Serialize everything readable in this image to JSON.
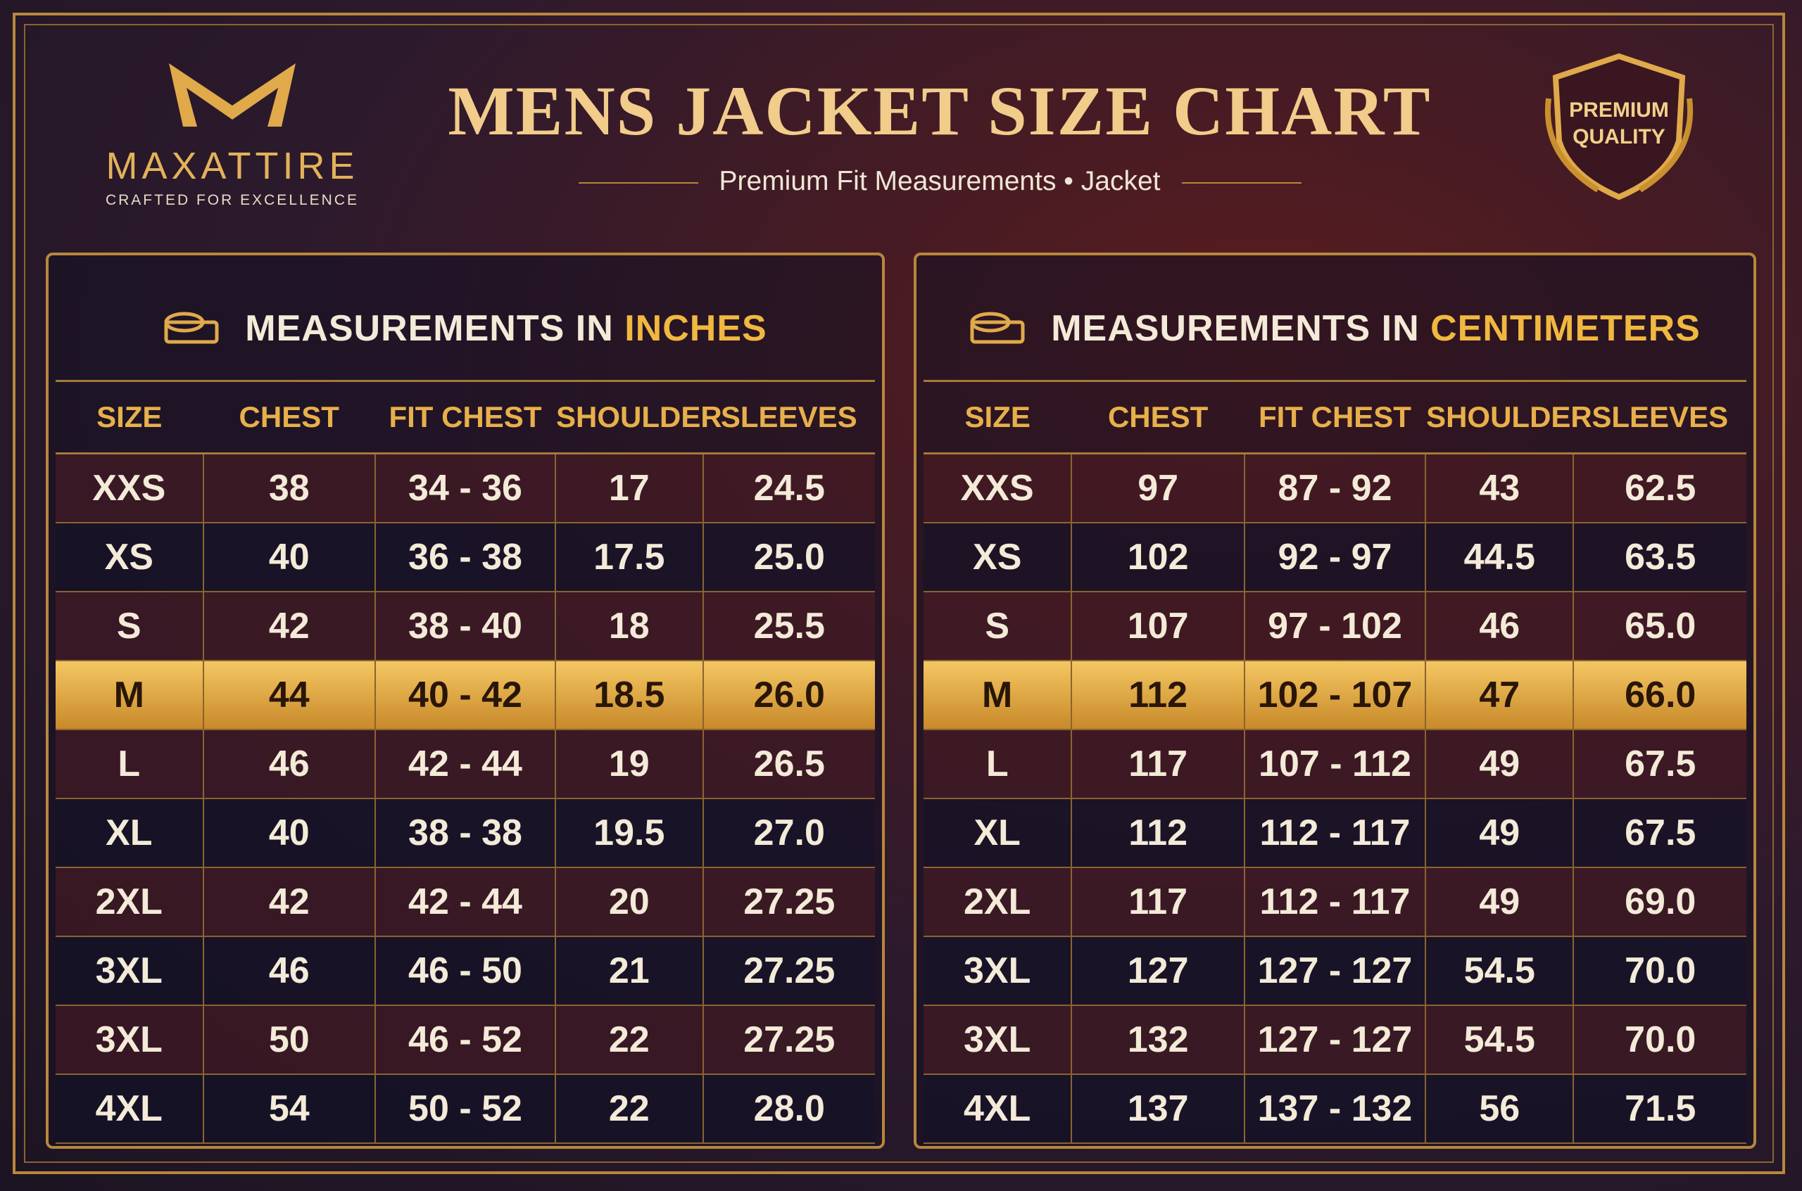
{
  "brand": {
    "name": "MAXATTIRE",
    "tagline": "CRAFTED FOR EXCELLENCE"
  },
  "header": {
    "title": "MENS JACKET SIZE CHART",
    "subtitle": "Premium Fit Measurements • Jacket"
  },
  "badge": {
    "line1": "PREMIUM",
    "line2": "QUALITY"
  },
  "tables": [
    {
      "heading_prefix": "MEASUREMENTS IN",
      "heading_unit": "INCHES",
      "columns": [
        "SIZE",
        "CHEST",
        "FIT CHEST",
        "SHOULDER",
        "SLEEVES"
      ],
      "rows": [
        [
          "XXS",
          "38",
          "34 - 36",
          "17",
          "24.5"
        ],
        [
          "XS",
          "40",
          "36 - 38",
          "17.5",
          "25.0"
        ],
        [
          "S",
          "42",
          "38 - 40",
          "18",
          "25.5"
        ],
        [
          "M",
          "44",
          "40 - 42",
          "18.5",
          "26.0"
        ],
        [
          "L",
          "46",
          "42 - 44",
          "19",
          "26.5"
        ],
        [
          "XL",
          "40",
          "38 - 38",
          "19.5",
          "27.0"
        ],
        [
          "2XL",
          "42",
          "42 - 44",
          "20",
          "27.25"
        ],
        [
          "3XL",
          "46",
          "46 - 50",
          "21",
          "27.25"
        ],
        [
          "3XL",
          "50",
          "46 - 52",
          "22",
          "27.25"
        ],
        [
          "4XL",
          "54",
          "50 - 52",
          "22",
          "28.0"
        ]
      ]
    },
    {
      "heading_prefix": "MEASUREMENTS IN",
      "heading_unit": "CENTIMETERS",
      "columns": [
        "SIZE",
        "CHEST",
        "FIT CHEST",
        "SHOULDER",
        "SLEEVES"
      ],
      "rows": [
        [
          "XXS",
          "97",
          "87 - 92",
          "43",
          "62.5"
        ],
        [
          "XS",
          "102",
          "92 - 97",
          "44.5",
          "63.5"
        ],
        [
          "S",
          "107",
          "97 - 102",
          "46",
          "65.0"
        ],
        [
          "M",
          "112",
          "102 - 107",
          "47",
          "66.0"
        ],
        [
          "L",
          "117",
          "107 - 112",
          "49",
          "67.5"
        ],
        [
          "XL",
          "112",
          "112 - 117",
          "49",
          "67.5"
        ],
        [
          "2XL",
          "117",
          "112 - 117",
          "49",
          "69.0"
        ],
        [
          "3XL",
          "127",
          "127 - 127",
          "54.5",
          "70.0"
        ],
        [
          "3XL",
          "132",
          "127 - 127",
          "54.5",
          "70.0"
        ],
        [
          "4XL",
          "137",
          "137 - 132",
          "56",
          "71.5"
        ]
      ]
    }
  ]
}
